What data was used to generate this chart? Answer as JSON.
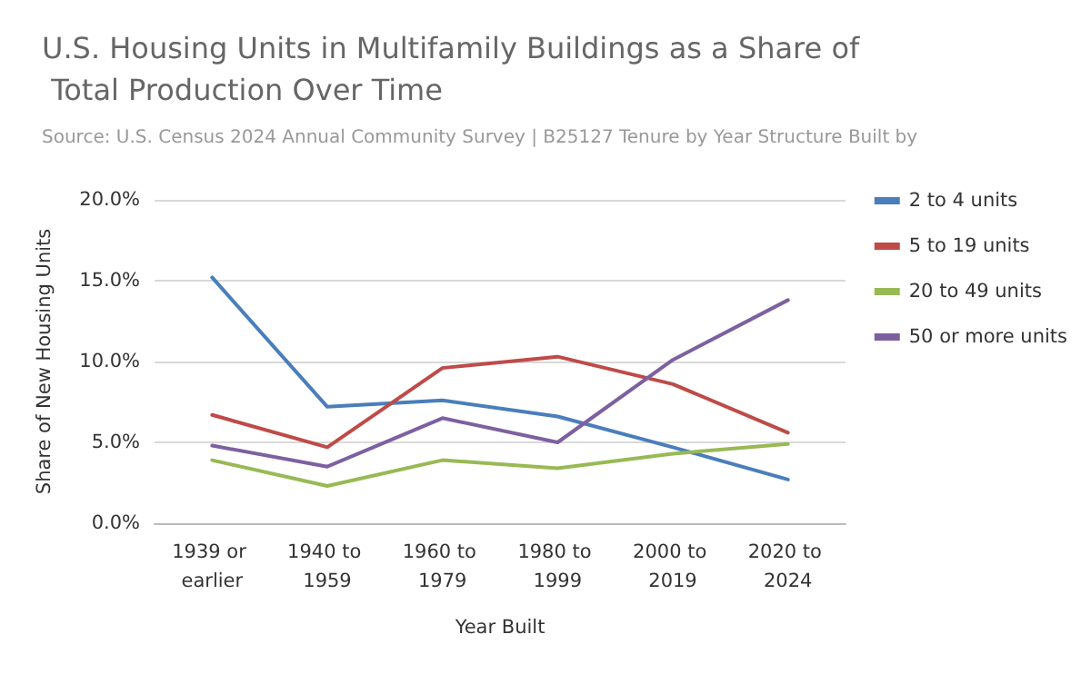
{
  "chart_data": {
    "type": "line",
    "title": "U.S. Housing Units in Multifamily Buildings as a Share of Total Production Over Time",
    "subtitle": "Source: U.S. Census 2024 Annual Community Survey | B25127 Tenure by Year Structure Built by",
    "xlabel": "Year Built",
    "ylabel": "Share of New Housing Units",
    "categories": [
      "1939 or earlier",
      "1940 to 1959",
      "1960 to 1979",
      "1980 to 1999",
      "2000 to 2019",
      "2020 to 2024"
    ],
    "series": [
      {
        "name": "2 to 4 units",
        "color": "#4a7ebb",
        "values": [
          15.2,
          7.2,
          7.6,
          6.6,
          4.7,
          2.7
        ]
      },
      {
        "name": "5 to 19 units",
        "color": "#be4b48",
        "values": [
          6.7,
          4.7,
          9.6,
          10.3,
          8.6,
          5.6
        ]
      },
      {
        "name": "20 to 49 units",
        "color": "#98b954",
        "values": [
          3.9,
          2.3,
          3.9,
          3.4,
          4.3,
          4.9
        ]
      },
      {
        "name": "50 or more units",
        "color": "#7d60a0",
        "values": [
          4.8,
          3.5,
          6.5,
          5.0,
          10.1,
          13.8
        ]
      }
    ],
    "ylim": [
      0,
      20
    ],
    "yticks": [
      {
        "value": 0,
        "label": "0.0%"
      },
      {
        "value": 5,
        "label": "5.0%"
      },
      {
        "value": 10,
        "label": "10.0%"
      },
      {
        "value": 15,
        "label": "15.0%"
      },
      {
        "value": 20,
        "label": "20.0%"
      }
    ],
    "grid": "y",
    "legend": "right",
    "marker": "none",
    "line_style": "solid"
  }
}
